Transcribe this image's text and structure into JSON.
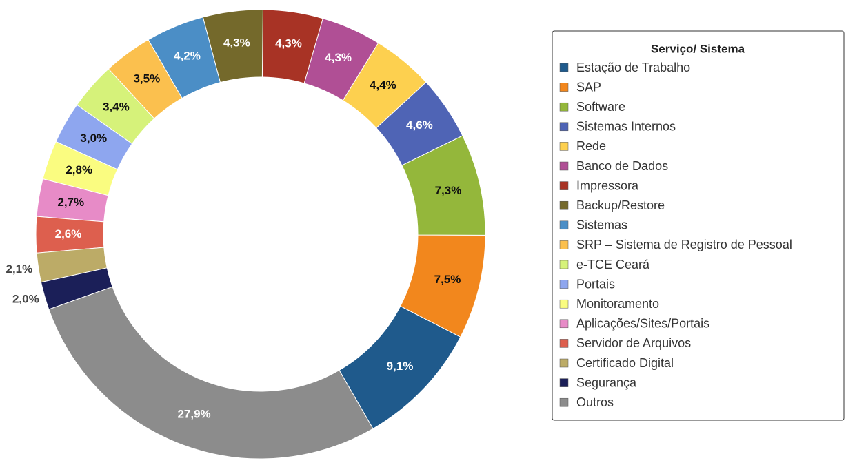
{
  "chart_data": {
    "type": "donut",
    "legend_title": "Serviço/ Sistema",
    "legend": "right",
    "categories": [
      "Estação de Trabalho",
      "SAP",
      "Software",
      "Sistemas Internos",
      "Rede",
      "Banco de Dados",
      "Impressora",
      "Backup/Restore",
      "Sistemas",
      "SRP – Sistema de Registro de Pessoal",
      "e-TCE Ceará",
      "Portais",
      "Monitoramento",
      "Aplicações/Sites/Portais",
      "Servidor de Arquivos",
      "Certificado Digital",
      "Segurança",
      "Outros"
    ],
    "values": [
      9.1,
      7.5,
      7.3,
      4.6,
      4.4,
      4.3,
      4.3,
      4.3,
      4.2,
      3.5,
      3.4,
      3.0,
      2.8,
      2.7,
      2.6,
      2.1,
      2.0,
      27.9
    ],
    "value_labels": [
      "9,1%",
      "7,5%",
      "7,3%",
      "4,6%",
      "4,4%",
      "4,3%",
      "4,3%",
      "4,3%",
      "4,2%",
      "3,5%",
      "3,4%",
      "3,0%",
      "2,8%",
      "2,7%",
      "2,6%",
      "2,1%",
      "2,0%",
      "27,9%"
    ],
    "colors": [
      "#1f5a8c",
      "#f2871d",
      "#94b73b",
      "#4f64b5",
      "#fdd04f",
      "#b04f95",
      "#a83325",
      "#74692b",
      "#4b8ec6",
      "#fbc04e",
      "#d6f27a",
      "#8ea6ef",
      "#fafc80",
      "#e78bc7",
      "#dd5f4e",
      "#bcab67",
      "#1b1f58",
      "#8c8c8c"
    ]
  }
}
